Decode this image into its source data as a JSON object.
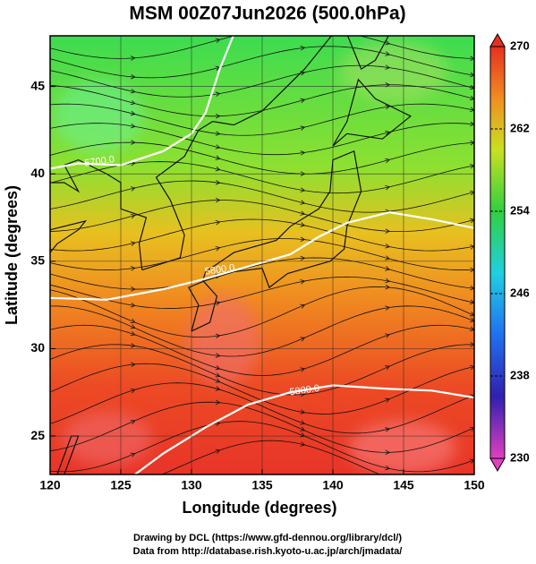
{
  "chart_data": {
    "type": "map",
    "title": "MSM 00Z07Jun2026 (500.0hPa)",
    "xlabel": "Longitude (degrees)",
    "ylabel": "Latitude  (degrees)",
    "xlim": [
      120,
      150
    ],
    "ylim": [
      22.8,
      47.9
    ],
    "xticks": [
      120,
      125,
      130,
      135,
      140,
      145,
      150
    ],
    "yticks": [
      25,
      30,
      35,
      40,
      45
    ],
    "grid": true,
    "colorbar": {
      "lim": [
        230,
        270
      ],
      "ticks": [
        230,
        238,
        246,
        254,
        262,
        270
      ]
    },
    "contour_labels": [
      "5700.0",
      "5800.0",
      "5880.0"
    ],
    "credits": [
      "Drawing by DCL (https://www.gfd-dennou.org/library/dcl/)",
      "Data from http://database.rish.kyoto-u.ac.jp/arch/jmadata/"
    ]
  }
}
